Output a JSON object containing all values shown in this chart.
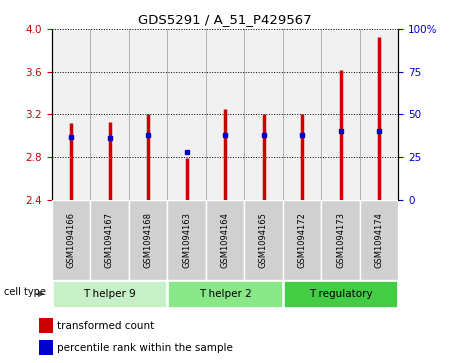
{
  "title": "GDS5291 / A_51_P429567",
  "samples": [
    "GSM1094166",
    "GSM1094167",
    "GSM1094168",
    "GSM1094163",
    "GSM1094164",
    "GSM1094165",
    "GSM1094172",
    "GSM1094173",
    "GSM1094174"
  ],
  "transformed_count": [
    3.12,
    3.13,
    3.2,
    2.79,
    3.25,
    3.2,
    3.2,
    3.62,
    3.93
  ],
  "percentile_rank": [
    37,
    36,
    38,
    28,
    38,
    38,
    38,
    40,
    40
  ],
  "ylim_left": [
    2.4,
    4.0
  ],
  "yticks_left": [
    2.4,
    2.8,
    3.2,
    3.6,
    4.0
  ],
  "yticks_right": [
    0,
    25,
    50,
    75,
    100
  ],
  "ylim_right": [
    0,
    100
  ],
  "cell_types": [
    {
      "label": "T helper 9",
      "start": 0,
      "end": 3,
      "color": "#c8f0c8"
    },
    {
      "label": "T helper 2",
      "start": 3,
      "end": 6,
      "color": "#88e888"
    },
    {
      "label": "T regulatory",
      "start": 6,
      "end": 9,
      "color": "#44cc44"
    }
  ],
  "bar_color": "#cc0000",
  "dot_color": "#0000cc",
  "legend_labels": [
    "transformed count",
    "percentile rank within the sample"
  ],
  "legend_colors": [
    "#cc0000",
    "#0000cc"
  ],
  "tick_label_color_left": "#cc0000",
  "tick_label_color_right": "#0000cc",
  "sample_box_color": "#d0d0d0",
  "grid_color": "#000000"
}
